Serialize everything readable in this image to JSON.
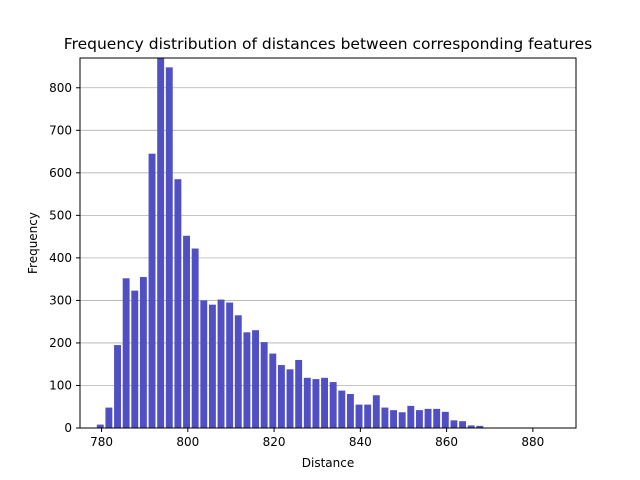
{
  "chart_data": {
    "type": "bar",
    "title": "Frequency distribution of distances between corresponding features",
    "xlabel": "Distance",
    "ylabel": "Frequency",
    "xlim": [
      775,
      890
    ],
    "ylim": [
      0,
      870
    ],
    "xticks": [
      780,
      800,
      820,
      840,
      860,
      880
    ],
    "yticks": [
      0,
      100,
      200,
      300,
      400,
      500,
      600,
      700,
      800
    ],
    "grid": "horizontal",
    "bar_color": "#5050c4",
    "bin_width": 2,
    "x": [
      779.7,
      781.7,
      783.7,
      785.7,
      787.7,
      789.7,
      791.7,
      793.7,
      795.7,
      797.7,
      799.7,
      801.7,
      803.7,
      805.7,
      807.7,
      809.7,
      811.7,
      813.7,
      815.7,
      817.7,
      819.7,
      821.7,
      823.7,
      825.7,
      827.7,
      829.7,
      831.7,
      833.7,
      835.7,
      837.7,
      839.7,
      841.7,
      843.7,
      845.7,
      847.7,
      849.7,
      851.7,
      853.7,
      855.7,
      857.7,
      859.7,
      861.7,
      863.7,
      865.7,
      867.7,
      869.7,
      871.7,
      873.7,
      875.7,
      877.7,
      879.7,
      881.7
    ],
    "values": [
      8,
      48,
      195,
      352,
      323,
      355,
      645,
      870,
      848,
      585,
      452,
      422,
      300,
      290,
      302,
      295,
      265,
      225,
      230,
      202,
      175,
      148,
      138,
      160,
      118,
      115,
      118,
      108,
      88,
      80,
      55,
      55,
      77,
      48,
      42,
      37,
      52,
      42,
      45,
      45,
      38,
      18,
      16,
      6,
      5,
      0,
      0,
      0,
      0,
      0,
      0,
      0
    ]
  }
}
